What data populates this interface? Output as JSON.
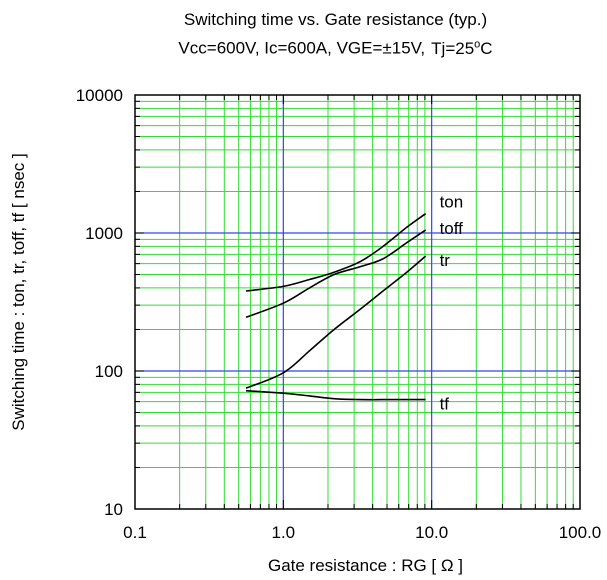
{
  "header": {
    "title": "Switching time vs. Gate resistance (typ.)",
    "subtitle": "Vcc=600V, Ic=600A, VGE=±15V,",
    "subtitle_tj_prefix": "Tj=25",
    "subtitle_tj_sup": "o",
    "subtitle_tj_suffix": "C"
  },
  "chart_data": {
    "type": "line",
    "xscale": "log",
    "yscale": "log",
    "xlim": [
      0.1,
      100
    ],
    "ylim": [
      10,
      10000
    ],
    "xticks": [
      "0.1",
      "1.0",
      "10.0",
      "100.0"
    ],
    "yticks": [
      "10",
      "100",
      "1000",
      "10000"
    ],
    "xlabel": "Gate resistance : RG [ Ω ]",
    "ylabel": "Switching time : ton, tr, toff, tf [ nsec ]",
    "grid": true,
    "colors": {
      "minor_grid": "#33dd33",
      "major_grid": "#3344ee",
      "series": "#000000"
    },
    "series": [
      {
        "name": "ton",
        "x": [
          0.56,
          1.0,
          1.5,
          2.2,
          3.3,
          4.7,
          6.8,
          9.1
        ],
        "values": [
          380,
          410,
          460,
          520,
          620,
          800,
          1100,
          1380
        ]
      },
      {
        "name": "toff",
        "x": [
          0.56,
          1.0,
          1.5,
          2.2,
          3.3,
          4.7,
          6.8,
          9.1
        ],
        "values": [
          245,
          310,
          400,
          500,
          570,
          650,
          850,
          1050
        ]
      },
      {
        "name": "tr",
        "x": [
          0.56,
          1.0,
          1.5,
          2.2,
          3.3,
          4.7,
          6.8,
          9.1
        ],
        "values": [
          75,
          97,
          140,
          200,
          280,
          380,
          520,
          680
        ]
      },
      {
        "name": "tf",
        "x": [
          0.56,
          1.0,
          1.5,
          2.2,
          3.3,
          4.7,
          6.8,
          9.1
        ],
        "values": [
          72,
          69,
          66,
          63,
          62,
          62,
          62,
          62
        ]
      }
    ]
  }
}
